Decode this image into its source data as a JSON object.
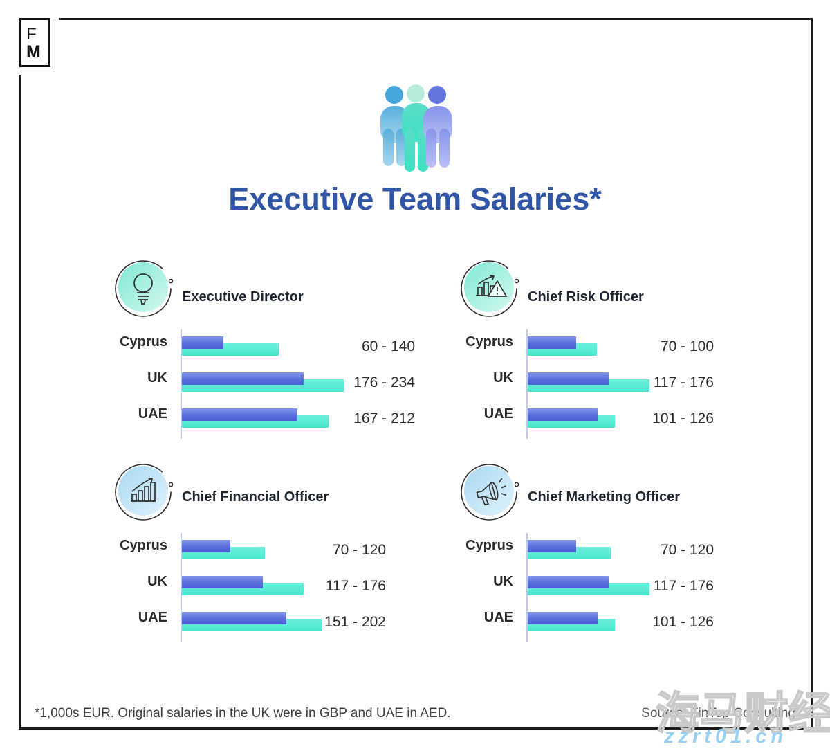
{
  "logo": {
    "line1": "F",
    "line2": "M"
  },
  "header": {
    "title": "Executive Team Salaries*",
    "icon": "team-people-icon"
  },
  "chart_data": [
    {
      "type": "bar",
      "title": "Executive Director",
      "icon": "lightbulb-icon",
      "categories": [
        "Cyprus",
        "UK",
        "UAE"
      ],
      "series": [
        {
          "name": "min",
          "values": [
            60,
            176,
            167
          ]
        },
        {
          "name": "max",
          "values": [
            140,
            234,
            212
          ]
        }
      ],
      "rows": [
        {
          "country": "Cyprus",
          "min": 60,
          "max": 140,
          "label": "60 - 140"
        },
        {
          "country": "UK",
          "min": 176,
          "max": 234,
          "label": "176 - 234"
        },
        {
          "country": "UAE",
          "min": 167,
          "max": 212,
          "label": "167 - 212"
        }
      ],
      "xlim": [
        0,
        240
      ],
      "unit": "1,000s EUR",
      "grid": false,
      "legend": "none"
    },
    {
      "type": "bar",
      "title": "Chief Risk Officer",
      "icon": "risk-chart-warning-icon",
      "categories": [
        "Cyprus",
        "UK",
        "UAE"
      ],
      "series": [
        {
          "name": "min",
          "values": [
            70,
            117,
            101
          ]
        },
        {
          "name": "max",
          "values": [
            100,
            176,
            126
          ]
        }
      ],
      "rows": [
        {
          "country": "Cyprus",
          "min": 70,
          "max": 100,
          "label": "70 - 100"
        },
        {
          "country": "UK",
          "min": 117,
          "max": 176,
          "label": "117 - 176"
        },
        {
          "country": "UAE",
          "min": 101,
          "max": 126,
          "label": "101 - 126"
        }
      ],
      "xlim": [
        0,
        240
      ],
      "unit": "1,000s EUR",
      "grid": false,
      "legend": "none"
    },
    {
      "type": "bar",
      "title": "Chief Financial Officer",
      "icon": "growth-bar-chart-icon",
      "categories": [
        "Cyprus",
        "UK",
        "UAE"
      ],
      "series": [
        {
          "name": "min",
          "values": [
            70,
            117,
            151
          ]
        },
        {
          "name": "max",
          "values": [
            120,
            176,
            202
          ]
        }
      ],
      "rows": [
        {
          "country": "Cyprus",
          "min": 70,
          "max": 120,
          "label": "70 - 120"
        },
        {
          "country": "UK",
          "min": 117,
          "max": 176,
          "label": "117 - 176"
        },
        {
          "country": "UAE",
          "min": 151,
          "max": 202,
          "label": "151 - 202"
        }
      ],
      "xlim": [
        0,
        240
      ],
      "unit": "1,000s EUR",
      "grid": false,
      "legend": "none"
    },
    {
      "type": "bar",
      "title": "Chief Marketing Officer",
      "icon": "megaphone-icon",
      "categories": [
        "Cyprus",
        "UK",
        "UAE"
      ],
      "series": [
        {
          "name": "min",
          "values": [
            70,
            117,
            101
          ]
        },
        {
          "name": "max",
          "values": [
            120,
            176,
            126
          ]
        }
      ],
      "rows": [
        {
          "country": "Cyprus",
          "min": 70,
          "max": 120,
          "label": "70 - 120"
        },
        {
          "country": "UK",
          "min": 117,
          "max": 176,
          "label": "117 - 176"
        },
        {
          "country": "UAE",
          "min": 101,
          "max": 126,
          "label": "101 - 126"
        }
      ],
      "xlim": [
        0,
        240
      ],
      "unit": "1,000s EUR",
      "grid": false,
      "legend": "none"
    }
  ],
  "footer": {
    "footnote": "*1,000s EUR. Original salaries in the UK were in GBP and UAE in AED.",
    "source": "Source: FinTop Consulting"
  },
  "watermark": {
    "cjk": "海马财经",
    "url": "zzrt01.cn"
  },
  "colors": {
    "title": "#3156a8",
    "bar_min_top": "#8295ea",
    "bar_min_bottom": "#4a5fd4",
    "bar_max_top": "#6cf0da",
    "bar_max_bottom": "#49e7cd",
    "axis": "#bcc8ec",
    "icon_circle_teal": "#7fe9d6",
    "icon_circle_blue": "#a9d9f2"
  }
}
